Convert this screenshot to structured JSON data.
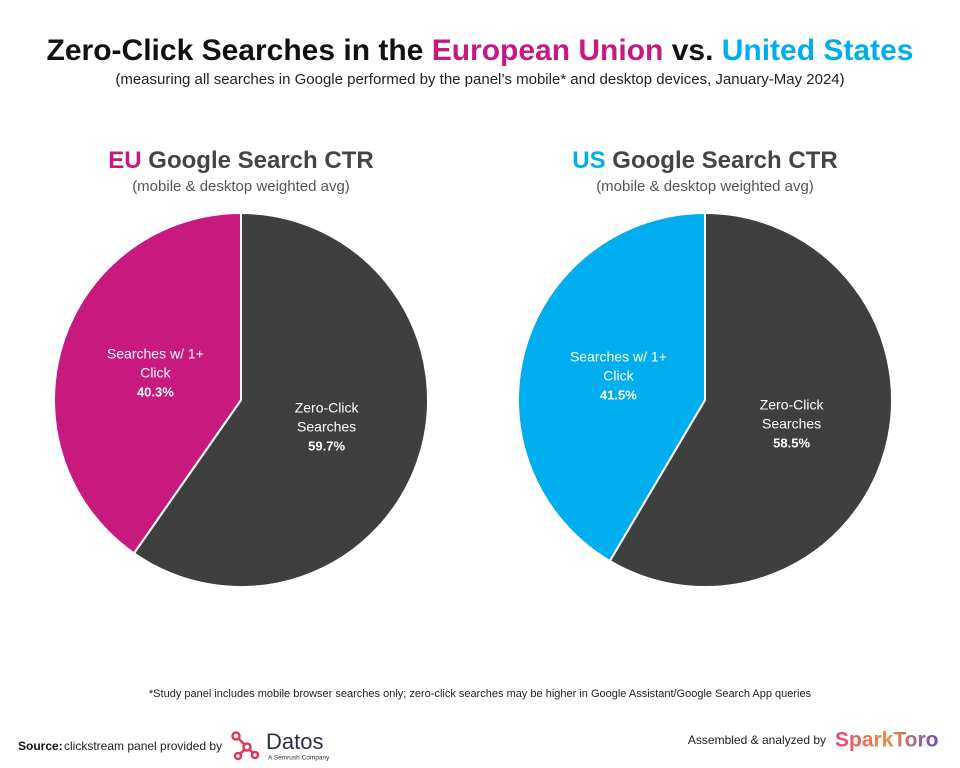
{
  "header": {
    "title": [
      {
        "text": "Zero-Click Searches in the ",
        "color": "#111111"
      },
      {
        "text": "European Union",
        "color": "#c8197f"
      },
      {
        "text": " vs. ",
        "color": "#111111"
      },
      {
        "text": "United States",
        "color": "#00aeef"
      }
    ],
    "subtitle": "(measuring all searches in Google performed by the panel’s mobile* and desktop devices, January-May 2024)"
  },
  "chart_data": [
    {
      "type": "pie",
      "title": [
        {
          "text": "EU",
          "color": "#c8197f"
        },
        {
          "text": " Google Search CTR",
          "color": "#444444"
        }
      ],
      "subtitle": "(mobile & desktop weighted avg)",
      "categories": [
        "Zero-Click Searches",
        "Searches w/ 1+ Click"
      ],
      "values": [
        59.7,
        40.3
      ],
      "value_labels": [
        "59.7%",
        "40.3%"
      ],
      "colors": [
        "#3f3f3f",
        "#c8197f"
      ]
    },
    {
      "type": "pie",
      "title": [
        {
          "text": "US",
          "color": "#00aeef"
        },
        {
          "text": " Google Search CTR",
          "color": "#444444"
        }
      ],
      "subtitle": "(mobile & desktop weighted avg)",
      "categories": [
        "Zero-Click Searches",
        "Searches w/ 1+ Click"
      ],
      "values": [
        58.5,
        41.5
      ],
      "value_labels": [
        "58.5%",
        "41.5%"
      ],
      "colors": [
        "#3f3f3f",
        "#00aeef"
      ]
    }
  ],
  "footer": {
    "footnote": "*Study panel includes mobile browser searches only; zero-click searches may be higher in Google Assistant/Google Search App queries",
    "source_label": "Source:",
    "source_text": "clickstream panel provided by",
    "datos": "Datos",
    "datos_tagline": "A Semrush Company",
    "credit": "Assembled & analyzed by",
    "brand": "SparkToro"
  }
}
